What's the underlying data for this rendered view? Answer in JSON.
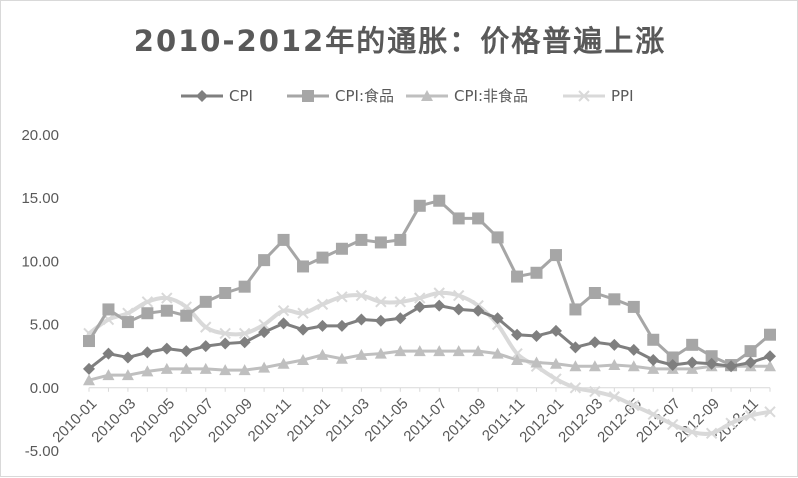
{
  "chart_data": {
    "type": "line",
    "title": "2010-2012年的通胀：价格普遍上涨",
    "xlabel": "",
    "ylabel": "",
    "ylim": [
      -5,
      20
    ],
    "yticks": [
      "-5.00",
      "0.00",
      "5.00",
      "10.00",
      "15.00",
      "20.00"
    ],
    "ytick_values": [
      -5,
      0,
      5,
      10,
      15,
      20
    ],
    "grid": false,
    "legend_position": "top",
    "x": [
      "2010-01",
      "2010-02",
      "2010-03",
      "2010-04",
      "2010-05",
      "2010-06",
      "2010-07",
      "2010-08",
      "2010-09",
      "2010-10",
      "2010-11",
      "2010-12",
      "2011-01",
      "2011-02",
      "2011-03",
      "2011-04",
      "2011-05",
      "2011-06",
      "2011-07",
      "2011-08",
      "2011-09",
      "2011-10",
      "2011-11",
      "2011-12",
      "2012-01",
      "2012-02",
      "2012-03",
      "2012-04",
      "2012-05",
      "2012-06",
      "2012-07",
      "2012-08",
      "2012-09",
      "2012-10",
      "2012-11",
      "2012-12"
    ],
    "xtick_labels": [
      "2010-01",
      "2010-03",
      "2010-05",
      "2010-07",
      "2010-09",
      "2010-11",
      "2011-01",
      "2011-03",
      "2011-05",
      "2011-07",
      "2011-09",
      "2011-11",
      "2012-01",
      "2012-03",
      "2012-05",
      "2012-07",
      "2012-09",
      "2012-11"
    ],
    "series": [
      {
        "name": "CPI",
        "color": "#7f7f7f",
        "marker": "diamond",
        "values": [
          1.5,
          2.7,
          2.4,
          2.8,
          3.1,
          2.9,
          3.3,
          3.5,
          3.6,
          4.4,
          5.1,
          4.6,
          4.9,
          4.9,
          5.4,
          5.3,
          5.5,
          6.4,
          6.5,
          6.2,
          6.1,
          5.5,
          4.2,
          4.1,
          4.5,
          3.2,
          3.6,
          3.4,
          3.0,
          2.2,
          1.8,
          2.0,
          1.9,
          1.7,
          2.0,
          2.5
        ]
      },
      {
        "name": "CPI:食品",
        "color": "#a6a6a6",
        "marker": "square",
        "values": [
          3.7,
          6.2,
          5.2,
          5.9,
          6.1,
          5.7,
          6.8,
          7.5,
          8.0,
          10.1,
          11.7,
          9.6,
          10.3,
          11.0,
          11.7,
          11.5,
          11.7,
          14.4,
          14.8,
          13.4,
          13.4,
          11.9,
          8.8,
          9.1,
          10.5,
          6.2,
          7.5,
          7.0,
          6.4,
          3.8,
          2.4,
          3.4,
          2.5,
          1.8,
          2.9,
          4.2
        ]
      },
      {
        "name": "CPI:非食品",
        "color": "#bfbfbf",
        "marker": "triangle",
        "values": [
          0.6,
          1.0,
          1.0,
          1.3,
          1.5,
          1.5,
          1.5,
          1.4,
          1.4,
          1.6,
          1.9,
          2.2,
          2.6,
          2.3,
          2.6,
          2.7,
          2.9,
          2.9,
          2.9,
          2.9,
          2.9,
          2.7,
          2.2,
          2.0,
          1.9,
          1.7,
          1.7,
          1.8,
          1.7,
          1.5,
          1.5,
          1.5,
          1.7,
          1.7,
          1.7,
          1.7
        ]
      },
      {
        "name": "PPI",
        "color": "#d9d9d9",
        "marker": "x",
        "smooth": true,
        "values": [
          4.3,
          5.4,
          5.9,
          6.8,
          7.1,
          6.4,
          4.8,
          4.3,
          4.3,
          5.0,
          6.1,
          5.9,
          6.6,
          7.2,
          7.3,
          6.8,
          6.8,
          7.1,
          7.5,
          7.3,
          6.5,
          5.0,
          2.7,
          1.7,
          0.7,
          0.0,
          -0.3,
          -0.7,
          -1.4,
          -2.1,
          -2.9,
          -3.5,
          -3.6,
          -2.8,
          -2.2,
          -1.9
        ]
      }
    ]
  }
}
